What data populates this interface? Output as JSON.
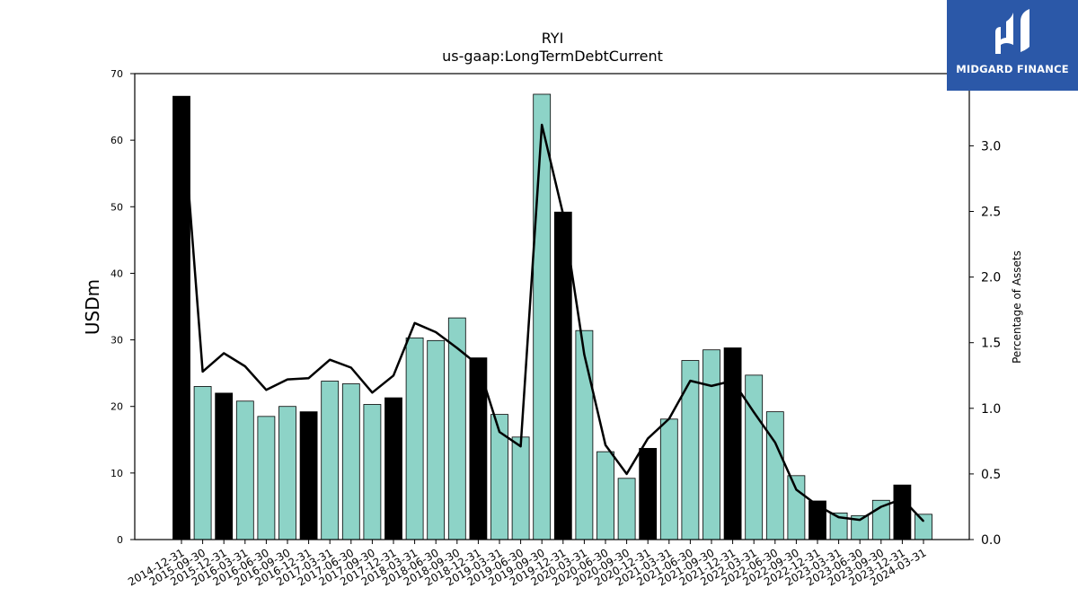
{
  "chart_data": {
    "type": "bar",
    "title": "RYI",
    "subtitle": "us-gaap:LongTermDebtCurrent",
    "ylabel": "USDm",
    "y2label": "Percentage of Assets",
    "ylim": [
      0,
      70
    ],
    "y2lim": [
      0,
      3.55
    ],
    "yticks": [
      0,
      10,
      20,
      30,
      40,
      50,
      60,
      70
    ],
    "y2ticks": [
      "0.0",
      "0.5",
      "1.0",
      "1.5",
      "2.0",
      "2.5",
      "3.0"
    ],
    "categories": [
      "2014-12-31",
      "2015-09-30",
      "2015-12-31",
      "2016-03-31",
      "2016-06-30",
      "2016-09-30",
      "2016-12-31",
      "2017-03-31",
      "2017-06-30",
      "2017-09-30",
      "2017-12-31",
      "2018-03-31",
      "2018-06-30",
      "2018-09-30",
      "2018-12-31",
      "2019-03-31",
      "2019-06-30",
      "2019-09-30",
      "2019-12-31",
      "2020-03-31",
      "2020-06-30",
      "2020-09-30",
      "2020-12-31",
      "2021-03-31",
      "2021-06-30",
      "2021-09-30",
      "2021-12-31",
      "2022-03-31",
      "2022-06-30",
      "2022-09-30",
      "2022-12-31",
      "2023-03-31",
      "2023-06-30",
      "2023-09-30",
      "2023-12-31",
      "2024-03-31"
    ],
    "series": [
      {
        "type": "bar",
        "axis": "left",
        "values": [
          66.6,
          23.0,
          22.0,
          20.8,
          18.5,
          20.0,
          19.2,
          23.8,
          23.4,
          20.3,
          21.3,
          30.3,
          29.9,
          33.3,
          27.3,
          18.8,
          15.4,
          66.9,
          49.2,
          31.4,
          13.2,
          9.2,
          13.7,
          18.1,
          26.9,
          28.5,
          28.8,
          24.7,
          19.2,
          9.6,
          5.8,
          4.0,
          3.6,
          5.9,
          8.2,
          3.8
        ],
        "colors": [
          "#000000",
          "#8dd3c7",
          "#000000",
          "#8dd3c7",
          "#8dd3c7",
          "#8dd3c7",
          "#000000",
          "#8dd3c7",
          "#8dd3c7",
          "#8dd3c7",
          "#000000",
          "#8dd3c7",
          "#8dd3c7",
          "#8dd3c7",
          "#000000",
          "#8dd3c7",
          "#8dd3c7",
          "#8dd3c7",
          "#000000",
          "#8dd3c7",
          "#8dd3c7",
          "#8dd3c7",
          "#000000",
          "#8dd3c7",
          "#8dd3c7",
          "#8dd3c7",
          "#000000",
          "#8dd3c7",
          "#8dd3c7",
          "#8dd3c7",
          "#000000",
          "#8dd3c7",
          "#8dd3c7",
          "#8dd3c7",
          "#000000",
          "#8dd3c7"
        ]
      },
      {
        "type": "line",
        "axis": "right",
        "color": "#000000",
        "values": [
          3.37,
          1.28,
          1.42,
          1.32,
          1.14,
          1.22,
          1.23,
          1.37,
          1.31,
          1.12,
          1.25,
          1.65,
          1.58,
          1.46,
          1.33,
          0.82,
          0.71,
          3.16,
          2.48,
          1.41,
          0.72,
          0.5,
          0.77,
          0.92,
          1.21,
          1.17,
          1.21,
          0.97,
          0.74,
          0.38,
          0.26,
          0.17,
          0.15,
          0.25,
          0.31,
          0.14
        ]
      }
    ],
    "grid": false
  },
  "logo": {
    "text": "MIDGARD FINANCE",
    "bg_color": "#2b58a8"
  }
}
